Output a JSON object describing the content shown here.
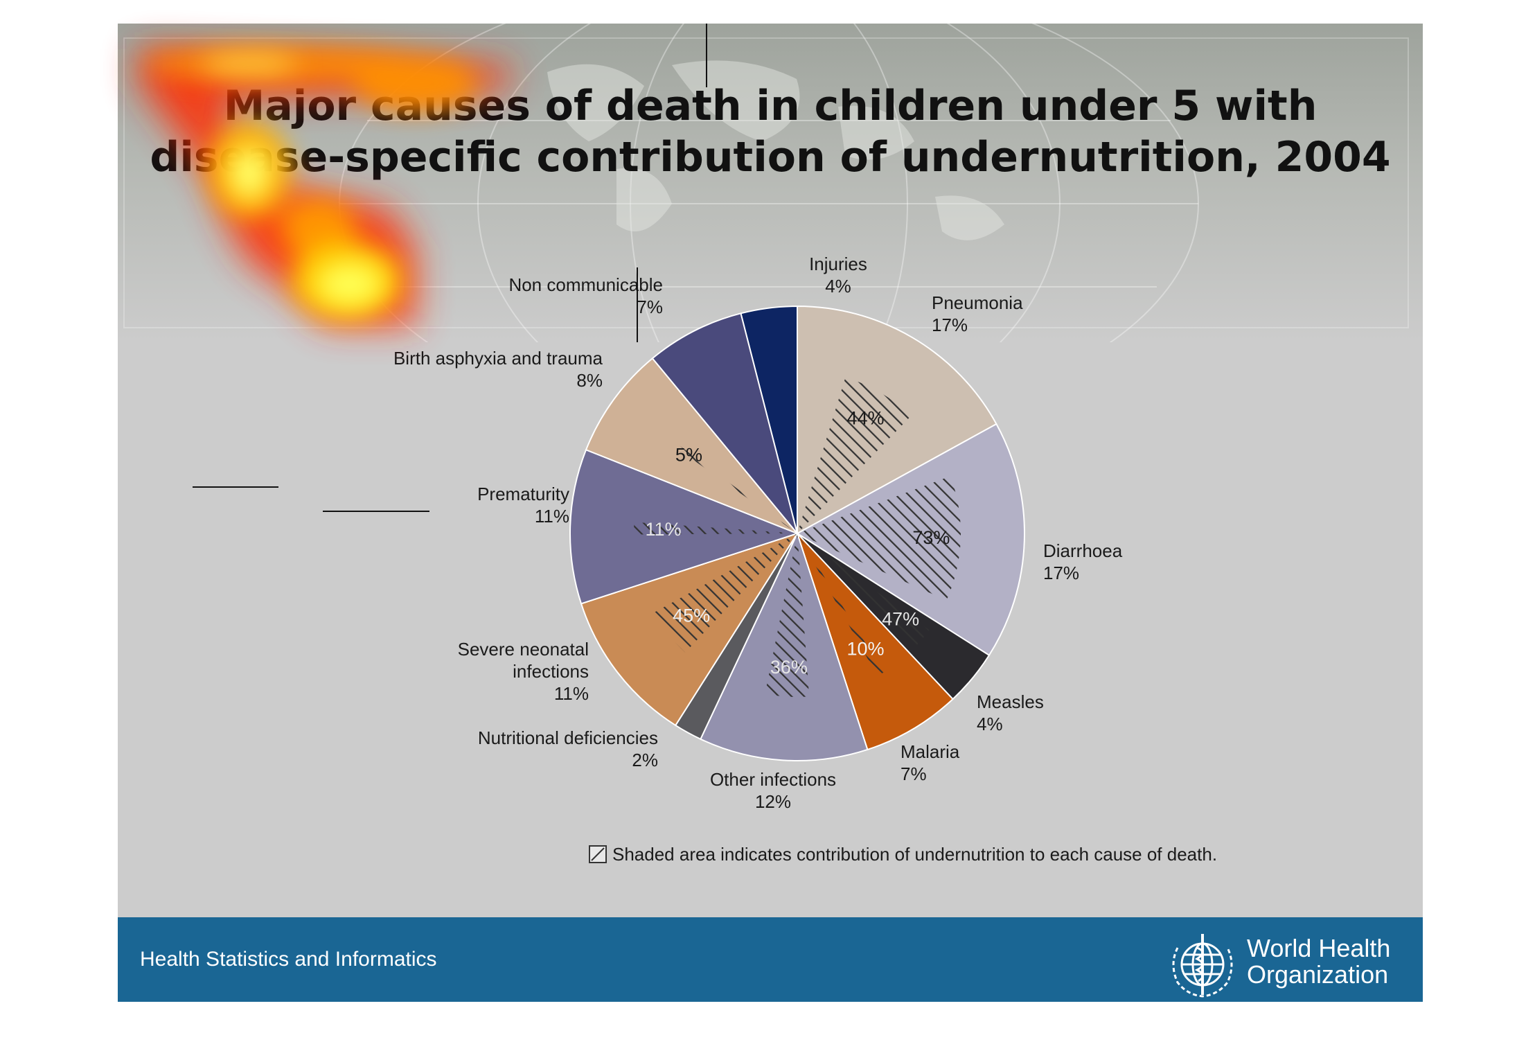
{
  "slide": {
    "title": "Major causes of death in children under 5 with\ndisease-specific contribution of undernutrition, 2004"
  },
  "chart_data": {
    "type": "pie",
    "title": "Major causes of death in children under 5 with disease-specific contribution of undernutrition, 2004",
    "unit": "%",
    "slices": [
      {
        "label": "Injuries",
        "value": 4,
        "value_label": "4%",
        "color": "#0d2563",
        "undernutrition_share": null,
        "share_label": ""
      },
      {
        "label": "Pneumonia",
        "value": 17,
        "value_label": "17%",
        "color": "#cdbfb1",
        "undernutrition_share": 44,
        "share_label": "44%"
      },
      {
        "label": "Diarrhoea",
        "value": 17,
        "value_label": "17%",
        "color": "#b3b1c6",
        "undernutrition_share": 73,
        "share_label": "73%"
      },
      {
        "label": "Measles",
        "value": 4,
        "value_label": "4%",
        "color": "#2b2a2e",
        "undernutrition_share": 47,
        "share_label": "47%"
      },
      {
        "label": "Malaria",
        "value": 7,
        "value_label": "7%",
        "color": "#c55a0c",
        "undernutrition_share": 10,
        "share_label": "10%"
      },
      {
        "label": "Other infections",
        "value": 12,
        "value_label": "12%",
        "color": "#9391ae",
        "undernutrition_share": 36,
        "share_label": "36%"
      },
      {
        "label": "Nutritional deficiencies",
        "value": 2,
        "value_label": "2%",
        "color": "#5a5a5e",
        "undernutrition_share": null,
        "share_label": ""
      },
      {
        "label": "Severe neonatal infections",
        "value": 11,
        "value_label": "11%",
        "color": "#c98b55",
        "undernutrition_share": 45,
        "share_label": "45%"
      },
      {
        "label": "Prematurity",
        "value": 11,
        "value_label": "11%",
        "color": "#6f6c94",
        "undernutrition_share": 11,
        "share_label": "11%"
      },
      {
        "label": "Birth asphyxia and trauma",
        "value": 8,
        "value_label": "8%",
        "color": "#cfb196",
        "undernutrition_share": 5,
        "share_label": "5%"
      },
      {
        "label": "Non communicable",
        "value": 7,
        "value_label": "7%",
        "color": "#4a4a7c",
        "undernutrition_share": null,
        "share_label": ""
      }
    ],
    "legend": {
      "text": "Shaded area indicates contribution of undernutrition to each cause of death.",
      "placement": "bottom"
    }
  },
  "footer": {
    "left_text": "Health Statistics and Informatics",
    "org_name": "World Health\nOrganization",
    "logo_icon": "who-emblem-icon",
    "background": "#1a6694"
  }
}
